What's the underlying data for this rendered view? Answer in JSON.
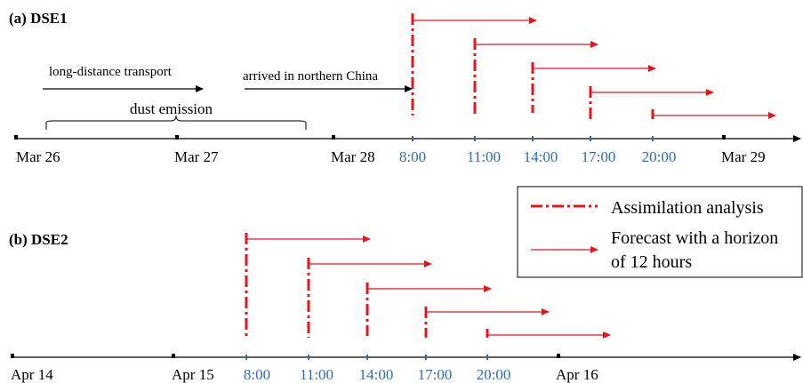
{
  "panel_a": {
    "title": "(a) DSE1",
    "annotations": {
      "transport": "long-distance transport",
      "emission": "dust emission",
      "arrived": "arrived in northern China"
    },
    "dates": [
      "Mar 26",
      "Mar 27",
      "Mar 28",
      "Mar 29"
    ],
    "times": [
      "8:00",
      "11:00",
      "14:00",
      "17:00",
      "20:00"
    ]
  },
  "panel_b": {
    "title": "(b) DSE2",
    "dates": [
      "Apr 14",
      "Apr 15",
      "Apr 16"
    ],
    "times": [
      "8:00",
      "11:00",
      "14:00",
      "17:00",
      "20:00"
    ]
  },
  "legend": {
    "assimilation": "Assimilation analysis",
    "forecast_line1": "Forecast with a horizon",
    "forecast_line2": "of 12 hours"
  },
  "colors": {
    "assimilation": "#e8141c",
    "forecast": "#e8141c",
    "time_label": "#2e6db4",
    "axis": "#000000"
  }
}
